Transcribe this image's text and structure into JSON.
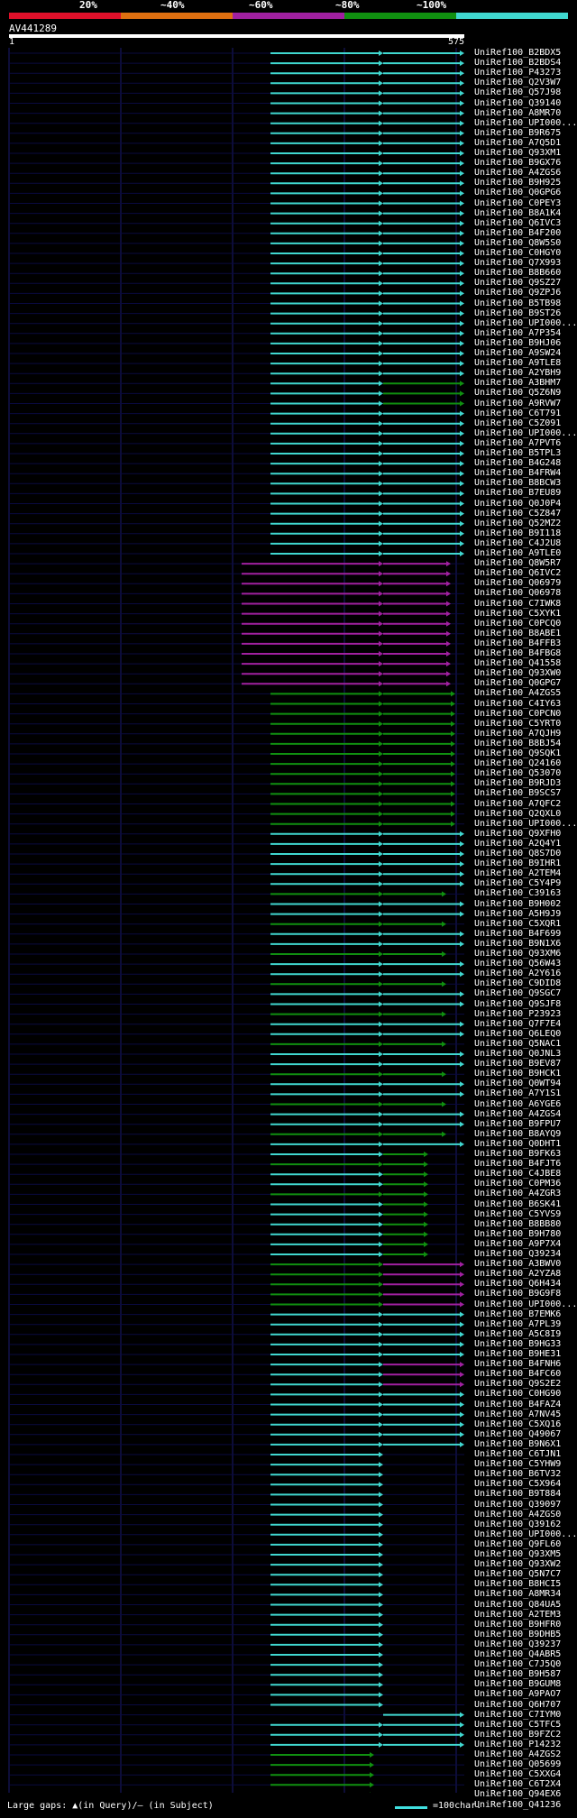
{
  "legend": {
    "labels": [
      "20%",
      "~40%",
      "~60%",
      "~80%",
      "~100%"
    ],
    "colors": [
      "#e0102a",
      "#e07010",
      "#a020a0",
      "#109010",
      "#40d8d0"
    ]
  },
  "query": {
    "name": "AV441289",
    "start": "1",
    "end": "575"
  },
  "footer": {
    "gaps": "Large gaps: ▲(in Query)/— (in Subject)",
    "scale": "=100char."
  },
  "hits": [
    "UniRef100_B2BDX5",
    "UniRef100_B2BDS4",
    "UniRef100_P43273",
    "UniRef100_Q2V3W7",
    "UniRef100_Q57J98",
    "UniRef100_Q39140",
    "UniRef100_A8MR70",
    "UniRef100_UPI000...",
    "UniRef100_B9R675",
    "UniRef100_A7Q5D1",
    "UniRef100_Q93XM1",
    "UniRef100_B9GX76",
    "UniRef100_A4ZGS6",
    "UniRef100_B9H925",
    "UniRef100_Q0GPG6",
    "UniRef100_C0PEY3",
    "UniRef100_B8A1K4",
    "UniRef100_Q6IVC3",
    "UniRef100_B4F200",
    "UniRef100_Q8W5S0",
    "UniRef100_C0HGY0",
    "UniRef100_Q7X993",
    "UniRef100_B8B660",
    "UniRef100_Q9SZ27",
    "UniRef100_Q9ZPJ6",
    "UniRef100_B5TB98",
    "UniRef100_B9ST26",
    "UniRef100_UPI000...",
    "UniRef100_A7P354",
    "UniRef100_B9HJ06",
    "UniRef100_A9SW24",
    "UniRef100_A9TLE8",
    "UniRef100_A2YBH9",
    "UniRef100_A3BHM7",
    "UniRef100_Q5Z6N9",
    "UniRef100_A9RVW7",
    "UniRef100_C6T791",
    "UniRef100_C5Z091",
    "UniRef100_UPI000...",
    "UniRef100_A7PVT6",
    "UniRef100_B5TPL3",
    "UniRef100_B4G248",
    "UniRef100_B4FRW4",
    "UniRef100_B8BCW3",
    "UniRef100_B7EU89",
    "UniRef100_Q0J0P4",
    "UniRef100_C5Z847",
    "UniRef100_Q52MZ2",
    "UniRef100_B9I118",
    "UniRef100_C4J2U8",
    "UniRef100_A9TLE0",
    "UniRef100_Q8W5R7",
    "UniRef100_Q6IVC2",
    "UniRef100_Q06979",
    "UniRef100_Q06978",
    "UniRef100_C7IWK8",
    "UniRef100_C5XYK1",
    "UniRef100_C0PCQ0",
    "UniRef100_B8ABE1",
    "UniRef100_B4FFB3",
    "UniRef100_B4FBG8",
    "UniRef100_Q41558",
    "UniRef100_Q93XW0",
    "UniRef100_Q0GPG7",
    "UniRef100_A4ZGS5",
    "UniRef100_C4IY63",
    "UniRef100_C0PCN0",
    "UniRef100_C5YRT0",
    "UniRef100_A7QJH9",
    "UniRef100_B8BJ54",
    "UniRef100_Q9SQK1",
    "UniRef100_Q24160",
    "UniRef100_Q53070",
    "UniRef100_B9RJD3",
    "UniRef100_B9SCS7",
    "UniRef100_A7QFC2",
    "UniRef100_Q2QXL0",
    "UniRef100_UPI000...",
    "UniRef100_Q9XFH0",
    "UniRef100_A2Q4Y1",
    "UniRef100_Q8S7D0",
    "UniRef100_B9IHR1",
    "UniRef100_A2TEM4",
    "UniRef100_C5Y4P9",
    "UniRef100_C39163",
    "UniRef100_B9H002",
    "UniRef100_A5H9J9",
    "UniRef100_C5XQR1",
    "UniRef100_B4F699",
    "UniRef100_B9N1X6",
    "UniRef100_Q93XM6",
    "UniRef100_Q56W43",
    "UniRef100_A2Y616",
    "UniRef100_C9DID8",
    "UniRef100_Q9SGC7",
    "UniRef100_Q9SJF8",
    "UniRef100_P23923",
    "UniRef100_Q7F7E4",
    "UniRef100_Q6LEQ0",
    "UniRef100_Q5NAC1",
    "UniRef100_Q0JNL3",
    "UniRef100_B9EV87",
    "UniRef100_B9HCK1",
    "UniRef100_Q0WT94",
    "UniRef100_A7Y1S1",
    "UniRef100_A6YGE6",
    "UniRef100_A4ZGS4",
    "UniRef100_B9FPU7",
    "UniRef100_B8AYQ9",
    "UniRef100_Q0DHT1",
    "UniRef100_B9FK63",
    "UniRef100_B4FJT6",
    "UniRef100_C4JBE8",
    "UniRef100_C0PM36",
    "UniRef100_A4ZGR3",
    "UniRef100_B6SK41",
    "UniRef100_C5YVS9",
    "UniRef100_B8BB80",
    "UniRef100_B9H780",
    "UniRef100_A9P7X4",
    "UniRef100_Q39234",
    "UniRef100_A3BWV0",
    "UniRef100_A2YZA8",
    "UniRef100_Q6H434",
    "UniRef100_B9G9F8",
    "UniRef100_UPI000...",
    "UniRef100_B7EMK6",
    "UniRef100_A7PL39",
    "UniRef100_A5C8I9",
    "UniRef100_B9HG33",
    "UniRef100_B9HE31",
    "UniRef100_B4FNH6",
    "UniRef100_B4FC60",
    "UniRef100_Q9S2E2",
    "UniRef100_C0HG90",
    "UniRef100_B4FAZ4",
    "UniRef100_A7NV45",
    "UniRef100_C5XQ16",
    "UniRef100_Q49067",
    "UniRef100_B9N6X1",
    "UniRef100_C6TJN1",
    "UniRef100_C5YHW9",
    "UniRef100_B6TV32",
    "UniRef100_C5X964",
    "UniRef100_B9T884",
    "UniRef100_Q39097",
    "UniRef100_A4ZGS0",
    "UniRef100_Q39162",
    "UniRef100_UPI000...",
    "UniRef100_Q9FL60",
    "UniRef100_Q93XM5",
    "UniRef100_Q93XW2",
    "UniRef100_Q5N7C7",
    "UniRef100_B8HCI5",
    "UniRef100_A8MR34",
    "UniRef100_Q84UA5",
    "UniRef100_A2TEM3",
    "UniRef100_B9HFR0",
    "UniRef100_B9DHB5",
    "UniRef100_Q39237",
    "UniRef100_Q4ABR5",
    "UniRef100_C7J5Q0",
    "UniRef100_B9H587",
    "UniRef100_B9GUM8",
    "UniRef100_A9PAO7",
    "UniRef100_Q6H707",
    "UniRef100_C7IYM0",
    "UniRef100_C5TFC5",
    "UniRef100_B9FZC2",
    "UniRef100_P14232",
    "UniRef100_A4ZGS2",
    "UniRef100_Q05699",
    "UniRef100_C5XXG4",
    "UniRef100_C6T2X4",
    "UniRef100_Q94EX6",
    "UniRef100_Q41236"
  ],
  "palette": {
    "query_line": "#ffffff",
    "grid": "#1a1a6e",
    "band": "#0a0a40",
    "cyan": "#40d8d0",
    "green": "#109010",
    "purple": "#a020a0"
  }
}
